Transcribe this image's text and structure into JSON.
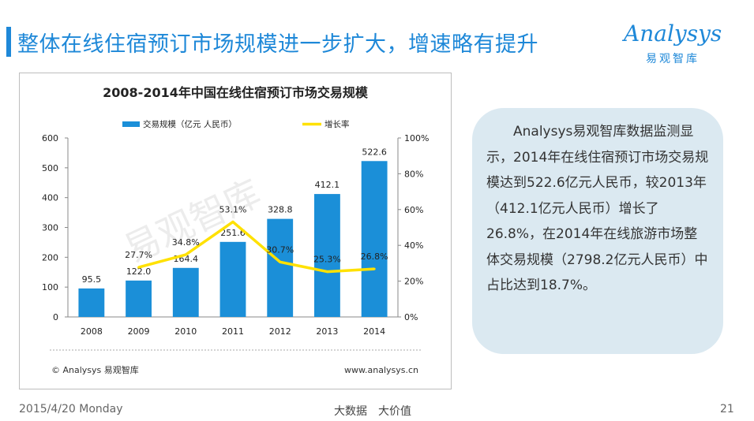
{
  "slide": {
    "title": "整体在线住宿预订市场规模进一步扩大，增速略有提升",
    "logo_main": "Analysys",
    "logo_sub": "易观智库",
    "info_text": "Analysys易观智库数据监测显示，2014年在线住宿预订市场交易规模达到522.6亿元人民币，较2013年（412.1亿元人民币）增长了26.8%，在2014年在线旅游市场整体交易规模（2798.2亿元人民币）中占比达到18.7%。",
    "footer_date": "2015/4/20 Monday",
    "footer_center": "大数据　大价值",
    "footer_page": "21",
    "watermark": "易观智库",
    "colors": {
      "accent": "#1e88d8",
      "bar": "#1b8fd8",
      "line": "#ffe100",
      "info_bg": "#dbe9f1"
    }
  },
  "chart_data": {
    "type": "bar",
    "title": "2008-2014年中国在线住宿预订市场交易规模",
    "categories": [
      "2008",
      "2009",
      "2010",
      "2011",
      "2012",
      "2013",
      "2014"
    ],
    "series": [
      {
        "name": "交易规模（亿元 人民币）",
        "type": "bar",
        "axis": "left",
        "values": [
          95.5,
          122.0,
          164.4,
          251.6,
          328.8,
          412.1,
          522.6
        ],
        "labels": [
          "95.5",
          "122.0",
          "164.4",
          "251.6",
          "328.8",
          "412.1",
          "522.6"
        ]
      },
      {
        "name": "增长率",
        "type": "line",
        "axis": "right",
        "values": [
          null,
          27.7,
          34.8,
          53.1,
          30.7,
          25.3,
          26.8
        ],
        "labels": [
          "",
          "27.7%",
          "34.8%",
          "53.1%",
          "30.7%",
          "25.3%",
          "26.8%"
        ]
      }
    ],
    "y_left": {
      "min": 0,
      "max": 600,
      "ticks": [
        "0",
        "100",
        "200",
        "300",
        "400",
        "500",
        "600"
      ]
    },
    "y_right": {
      "min": 0,
      "max": 100,
      "ticks": [
        "0%",
        "20%",
        "40%",
        "60%",
        "80%",
        "100%"
      ]
    },
    "legend_position": "top",
    "grid": false,
    "source": "© Analysys 易观智库",
    "website": "www.analysys.cn"
  }
}
